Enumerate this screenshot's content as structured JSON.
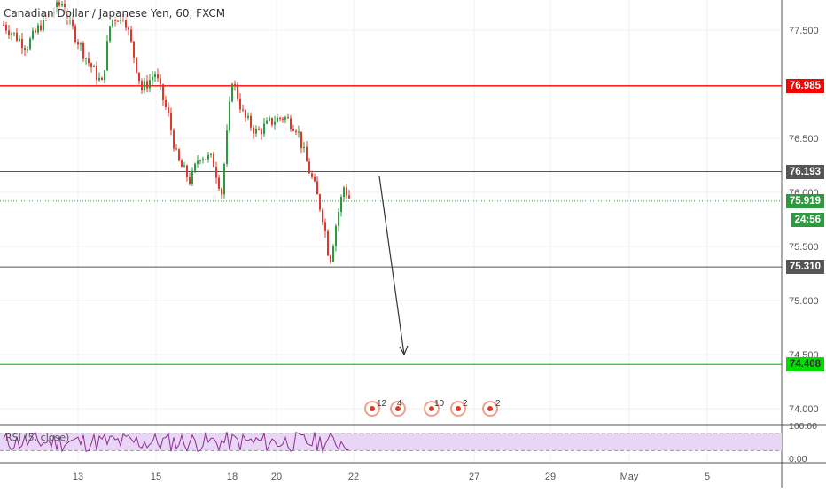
{
  "chart_data": {
    "type": "candlestick",
    "title": "Canadian Dollar / Japanese Yen, 60, FXCM",
    "y_axis": {
      "ticks": [
        "77.500",
        "76.500",
        "76.000",
        "75.500",
        "75.000",
        "74.500",
        "74.000"
      ],
      "tick_values": [
        77.5,
        76.5,
        76.0,
        75.5,
        75.0,
        74.5,
        74.0
      ],
      "ylim": [
        73.9,
        77.75
      ]
    },
    "x_axis": {
      "ticks": [
        "13",
        "15",
        "18",
        "20",
        "22",
        "27",
        "29",
        "May",
        "5"
      ]
    },
    "horizontal_levels": [
      {
        "label": "76.985",
        "value": 76.985,
        "color": "#ff0000"
      },
      {
        "label": "76.193",
        "value": 76.193,
        "color": "#555555"
      },
      {
        "label": "75.310",
        "value": 75.31,
        "color": "#555555"
      },
      {
        "label": "74.408",
        "value": 74.408,
        "color": "#00dd00"
      }
    ],
    "current_price": {
      "label": "75.919",
      "value": 75.919,
      "color": "#2e9a3e"
    },
    "countdown": "24:56",
    "forecast_arrow": {
      "from_value": 76.15,
      "to_value": 74.5
    },
    "rsi": {
      "title": "RSI (5, close)",
      "ticks": [
        "100.00",
        "0.00"
      ],
      "upper_band": 80,
      "lower_band": 20
    },
    "events": [
      {
        "count": "12"
      },
      {
        "count": "4"
      },
      {
        "count": "10"
      },
      {
        "count": "2"
      },
      {
        "count": "2"
      }
    ]
  },
  "colors": {
    "up_candle": "#2e9a3e",
    "down_candle": "#e0392b",
    "rsi_line": "#8b2f8f",
    "rsi_band": "#e9d5f5"
  }
}
